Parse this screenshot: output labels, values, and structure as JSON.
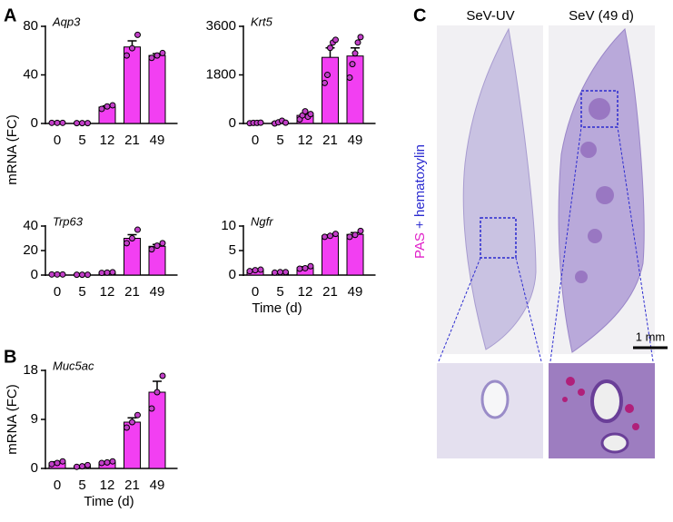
{
  "panels": {
    "A": "A",
    "B": "B",
    "C": "C"
  },
  "panel_A": {
    "y_label": "mRNA (FC)",
    "x_label": "Time (d)"
  },
  "panel_B": {
    "y_label": "mRNA (FC)",
    "x_label": "Time (d)"
  },
  "panel_C": {
    "columns": [
      "SeV-UV",
      "SeV (49 d)"
    ],
    "stain": [
      "PAS",
      "+ hematoxylin"
    ],
    "scale_bar": "1 mm"
  },
  "chart_data": [
    {
      "type": "bar",
      "title": "Aqp3",
      "categories": [
        "0",
        "5",
        "12",
        "21",
        "49"
      ],
      "values": [
        0.5,
        0.3,
        13.5,
        63,
        56
      ],
      "errors": [
        0.1,
        0.1,
        1,
        5,
        1.5
      ],
      "points": [
        [
          0.5,
          0.5,
          0.5
        ],
        [
          0.3,
          0.3,
          0.3
        ],
        [
          12,
          14,
          15
        ],
        [
          56,
          62,
          73
        ],
        [
          54,
          56,
          58
        ]
      ],
      "color": "#f23ff2",
      "ylim": [
        0,
        80
      ],
      "yticks": [
        0,
        40,
        80
      ]
    },
    {
      "type": "bar",
      "title": "Krt5",
      "categories": [
        "0",
        "5",
        "12",
        "21",
        "49"
      ],
      "values": [
        20,
        50,
        300,
        2450,
        2500
      ],
      "errors": [
        10,
        20,
        60,
        350,
        300
      ],
      "points": [
        [
          10,
          20,
          20,
          30
        ],
        [
          0,
          40,
          100,
          30
        ],
        [
          150,
          300,
          450,
          250,
          350
        ],
        [
          1500,
          1800,
          2800,
          3000,
          3100
        ],
        [
          1700,
          2200,
          2600,
          3000,
          3200
        ]
      ],
      "color": "#f23ff2",
      "ylim": [
        0,
        3600
      ],
      "yticks": [
        0,
        1800,
        3600
      ]
    },
    {
      "type": "bar",
      "title": "Trp63",
      "categories": [
        "0",
        "5",
        "12",
        "21",
        "49"
      ],
      "values": [
        0.5,
        0.3,
        2,
        30,
        23.5
      ],
      "errors": [
        0.1,
        0.1,
        0.3,
        3,
        1.5
      ],
      "points": [
        [
          0.5,
          0.5,
          0.5
        ],
        [
          0.3,
          0.3,
          0.3
        ],
        [
          1.8,
          2,
          2.3
        ],
        [
          26,
          30,
          37
        ],
        [
          21,
          24,
          26
        ]
      ],
      "color": "#f23ff2",
      "ylim": [
        0,
        40
      ],
      "yticks": [
        0,
        20,
        40
      ]
    },
    {
      "type": "bar",
      "title": "Ngfr",
      "categories": [
        "0",
        "5",
        "12",
        "21",
        "49"
      ],
      "values": [
        1,
        0.6,
        1.5,
        8,
        8.3
      ],
      "errors": [
        0.1,
        0.05,
        0.2,
        0.2,
        0.35
      ],
      "points": [
        [
          0.8,
          1,
          1.1
        ],
        [
          0.5,
          0.6,
          0.6
        ],
        [
          1.3,
          1.4,
          1.8
        ],
        [
          7.8,
          8,
          8.4
        ],
        [
          7.8,
          8.2,
          9
        ]
      ],
      "color": "#f23ff2",
      "ylim": [
        0,
        10
      ],
      "yticks": [
        0,
        5,
        10
      ]
    },
    {
      "type": "bar",
      "title": "Muc5ac",
      "categories": [
        "0",
        "5",
        "12",
        "21",
        "49"
      ],
      "values": [
        1,
        0.4,
        1.1,
        8.5,
        14
      ],
      "errors": [
        0.2,
        0.1,
        0.1,
        0.8,
        2
      ],
      "points": [
        [
          0.8,
          1,
          1.3
        ],
        [
          0.3,
          0.4,
          0.6
        ],
        [
          1,
          1.1,
          1.3
        ],
        [
          7.5,
          8.5,
          9.8
        ],
        [
          11,
          14,
          17
        ]
      ],
      "color": "#f23ff2",
      "ylim": [
        0,
        18
      ],
      "yticks": [
        0,
        9,
        18
      ]
    }
  ]
}
